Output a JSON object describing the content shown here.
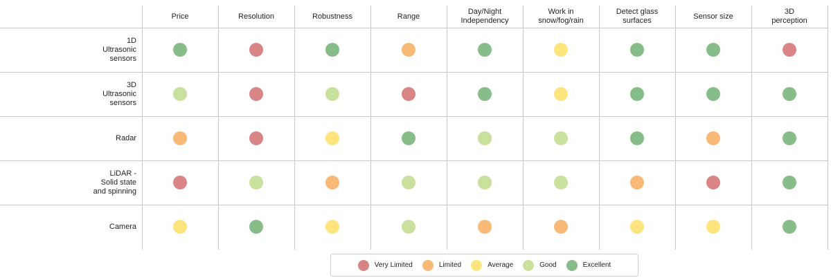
{
  "table": {
    "columns": [
      "Price",
      "Resolution",
      "Robustness",
      "Range",
      "Day/Night\nIndependency",
      "Work in\nsnow/fog/rain",
      "Detect glass\nsurfaces",
      "Sensor size",
      "3D\nperception"
    ],
    "rows": [
      {
        "label": "1D\nUltrasonic\nsensors",
        "ratings": [
          "Excellent",
          "Very Limited",
          "Excellent",
          "Limited",
          "Excellent",
          "Average",
          "Excellent",
          "Excellent",
          "Very Limited"
        ]
      },
      {
        "label": "3D\nUltrasonic\nsensors",
        "ratings": [
          "Good",
          "Very Limited",
          "Good",
          "Very Limited",
          "Excellent",
          "Average",
          "Excellent",
          "Excellent",
          "Excellent"
        ]
      },
      {
        "label": "Radar",
        "ratings": [
          "Limited",
          "Very Limited",
          "Average",
          "Excellent",
          "Good",
          "Good",
          "Excellent",
          "Limited",
          "Excellent"
        ]
      },
      {
        "label": "LiDAR -\nSolid state\nand spinning",
        "ratings": [
          "Very Limited",
          "Good",
          "Limited",
          "Good",
          "Good",
          "Good",
          "Limited",
          "Very Limited",
          "Excellent"
        ]
      },
      {
        "label": "Camera",
        "ratings": [
          "Average",
          "Excellent",
          "Average",
          "Good",
          "Limited",
          "Limited",
          "Average",
          "Average",
          "Excellent"
        ]
      }
    ]
  },
  "legend": [
    {
      "label": "Very Limited",
      "color": "#d98585"
    },
    {
      "label": "Limited",
      "color": "#f8b876"
    },
    {
      "label": "Average",
      "color": "#fde47c"
    },
    {
      "label": "Good",
      "color": "#c9e19c"
    },
    {
      "label": "Excellent",
      "color": "#86bd88"
    }
  ]
}
